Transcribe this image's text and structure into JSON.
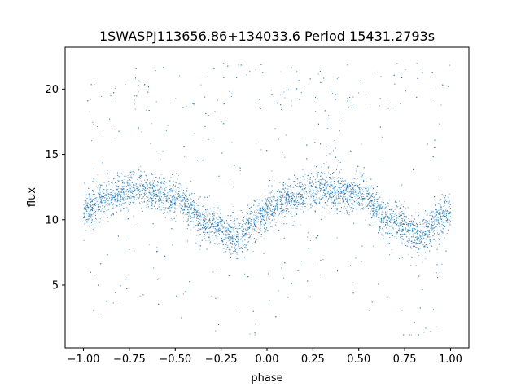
{
  "chart_data": {
    "type": "scatter",
    "title": "1SWASPJ113656.86+134033.6 Period 15431.2793s",
    "xlabel": "phase",
    "ylabel": "flux",
    "xlim": [
      -1.1,
      1.1
    ],
    "ylim": [
      0.2,
      23.2
    ],
    "xticks": [
      -1.0,
      -0.75,
      -0.5,
      -0.25,
      0.0,
      0.25,
      0.5,
      0.75,
      1.0
    ],
    "xtick_labels": [
      "−1.00",
      "−0.75",
      "−0.50",
      "−0.25",
      "0.00",
      "0.25",
      "0.50",
      "0.75",
      "1.00"
    ],
    "yticks": [
      5,
      10,
      15,
      20
    ],
    "ytick_labels": [
      "5",
      "10",
      "15",
      "20"
    ],
    "grid": false,
    "marker_color": "#1f77b4",
    "series": [
      {
        "description_of_trend": "folded light curve, two cycles over phase -1 to 1",
        "phase_range": [
          -1.0,
          1.0
        ],
        "mean_flux_profile": {
          "phase": [
            -1.0,
            -0.85,
            -0.7,
            -0.5,
            -0.3,
            -0.17,
            -0.05,
            0.1,
            0.3,
            0.5,
            0.7,
            0.83,
            0.95,
            1.0
          ],
          "flux": [
            10.8,
            11.8,
            12.4,
            11.6,
            9.6,
            8.6,
            10.0,
            11.6,
            12.4,
            11.8,
            9.8,
            8.7,
            10.2,
            10.8
          ]
        },
        "band_half_width": 1.3,
        "outlier_flux_range": [
          1.2,
          22.2
        ],
        "upper_saturation_flux": 22.0
      }
    ]
  }
}
